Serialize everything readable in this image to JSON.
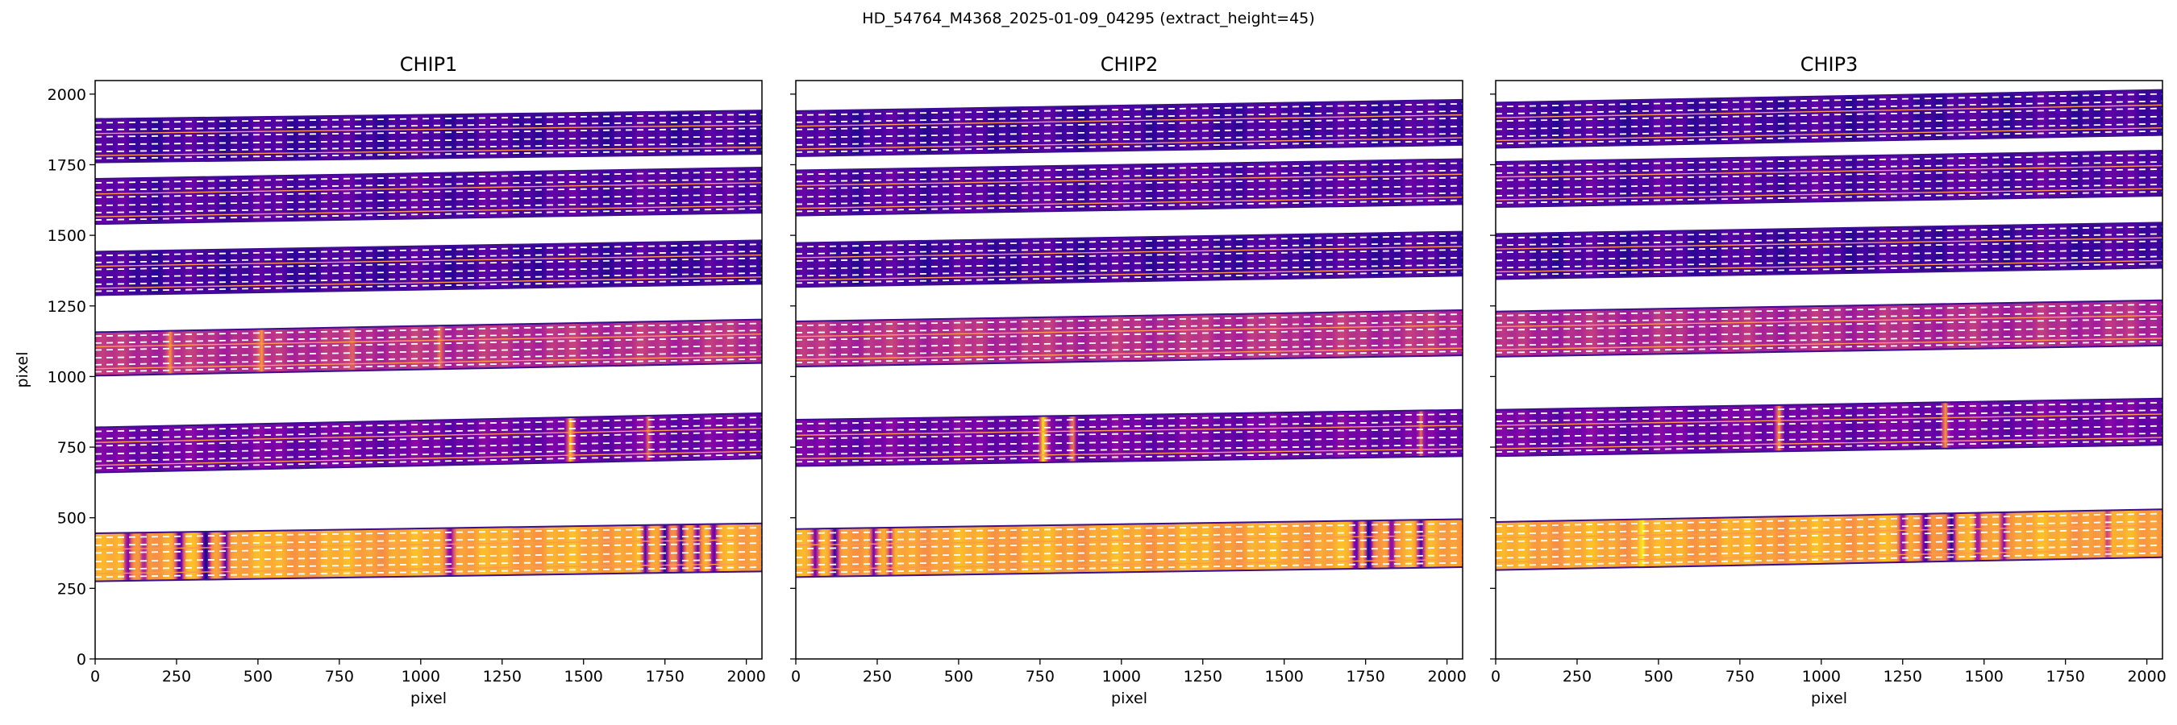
{
  "figure": {
    "suptitle": "HD_54764_M4368_2025-01-09_04295  (extract_height=45)"
  },
  "colors": {
    "order_edge": "#3b0f8c",
    "trace_center": "#ff9a50",
    "extraction_window": "#ffffff",
    "colormap": "plasma"
  },
  "chart_data": [
    {
      "type": "heatmap",
      "title": "CHIP1",
      "xlabel": "pixel",
      "ylabel": "pixel",
      "xlim": [
        0,
        2048
      ],
      "ylim": [
        0,
        2048
      ],
      "xticks": [
        0,
        250,
        500,
        750,
        1000,
        1250,
        1500,
        1750,
        2000
      ],
      "yticks": [
        0,
        250,
        500,
        750,
        1000,
        1250,
        1500,
        1750,
        2000
      ],
      "orders": [
        {
          "y_left": 360,
          "y_right": 395,
          "half_width": 85,
          "base_intensity": 0.8,
          "absorption_lines": [
            {
              "x": 100,
              "depth": 0.6,
              "width": 18
            },
            {
              "x": 150,
              "depth": 0.5,
              "width": 14
            },
            {
              "x": 260,
              "depth": 0.7,
              "width": 20
            },
            {
              "x": 340,
              "depth": 0.8,
              "width": 22
            },
            {
              "x": 400,
              "depth": 0.6,
              "width": 16
            },
            {
              "x": 1090,
              "depth": 0.5,
              "width": 20
            },
            {
              "x": 1690,
              "depth": 0.7,
              "width": 16
            },
            {
              "x": 1750,
              "depth": 0.8,
              "width": 18
            },
            {
              "x": 1800,
              "depth": 0.7,
              "width": 16
            },
            {
              "x": 1850,
              "depth": 0.6,
              "width": 14
            },
            {
              "x": 1900,
              "depth": 0.7,
              "width": 18
            }
          ]
        },
        {
          "y_left": 740,
          "y_right": 790,
          "half_width": 80,
          "base_intensity": 0.22,
          "absorption_lines": [
            {
              "x": 1460,
              "depth": -0.6,
              "width": 16
            },
            {
              "x": 1700,
              "depth": -0.4,
              "width": 12
            }
          ]
        },
        {
          "y_left": 1080,
          "y_right": 1125,
          "half_width": 77,
          "base_intensity": 0.42,
          "absorption_lines": [
            {
              "x": 230,
              "depth": -0.3,
              "width": 12
            },
            {
              "x": 510,
              "depth": -0.3,
              "width": 12
            },
            {
              "x": 790,
              "depth": -0.2,
              "width": 10
            },
            {
              "x": 1060,
              "depth": -0.25,
              "width": 12
            }
          ]
        },
        {
          "y_left": 1365,
          "y_right": 1405,
          "half_width": 77,
          "base_intensity": 0.12,
          "absorption_lines": []
        },
        {
          "y_left": 1620,
          "y_right": 1660,
          "half_width": 80,
          "base_intensity": 0.15,
          "absorption_lines": []
        },
        {
          "y_left": 1835,
          "y_right": 1865,
          "half_width": 77,
          "base_intensity": 0.12,
          "absorption_lines": []
        }
      ]
    },
    {
      "type": "heatmap",
      "title": "CHIP2",
      "xlabel": "pixel",
      "ylabel": "",
      "xlim": [
        0,
        2048
      ],
      "ylim": [
        0,
        2048
      ],
      "xticks": [
        0,
        250,
        500,
        750,
        1000,
        1250,
        1500,
        1750,
        2000
      ],
      "yticks": [
        0,
        250,
        500,
        750,
        1000,
        1250,
        1500,
        1750,
        2000
      ],
      "orders": [
        {
          "y_left": 375,
          "y_right": 410,
          "half_width": 85,
          "base_intensity": 0.8,
          "absorption_lines": [
            {
              "x": 60,
              "depth": 0.6,
              "width": 18
            },
            {
              "x": 120,
              "depth": 0.7,
              "width": 18
            },
            {
              "x": 240,
              "depth": 0.6,
              "width": 16
            },
            {
              "x": 290,
              "depth": 0.5,
              "width": 14
            },
            {
              "x": 1720,
              "depth": 0.7,
              "width": 16
            },
            {
              "x": 1760,
              "depth": 0.8,
              "width": 18
            },
            {
              "x": 1830,
              "depth": 0.6,
              "width": 14
            },
            {
              "x": 1920,
              "depth": 0.7,
              "width": 18
            }
          ]
        },
        {
          "y_left": 765,
          "y_right": 800,
          "half_width": 82,
          "base_intensity": 0.22,
          "absorption_lines": [
            {
              "x": 760,
              "depth": -0.7,
              "width": 18
            },
            {
              "x": 850,
              "depth": -0.5,
              "width": 14
            },
            {
              "x": 1920,
              "depth": -0.4,
              "width": 12
            }
          ]
        },
        {
          "y_left": 1115,
          "y_right": 1155,
          "half_width": 80,
          "base_intensity": 0.42,
          "absorption_lines": []
        },
        {
          "y_left": 1395,
          "y_right": 1435,
          "half_width": 78,
          "base_intensity": 0.12,
          "absorption_lines": []
        },
        {
          "y_left": 1650,
          "y_right": 1690,
          "half_width": 80,
          "base_intensity": 0.15,
          "absorption_lines": []
        },
        {
          "y_left": 1860,
          "y_right": 1900,
          "half_width": 80,
          "base_intensity": 0.12,
          "absorption_lines": []
        }
      ]
    },
    {
      "type": "heatmap",
      "title": "CHIP3",
      "xlabel": "pixel",
      "ylabel": "",
      "xlim": [
        0,
        2048
      ],
      "ylim": [
        0,
        2048
      ],
      "xticks": [
        0,
        250,
        500,
        750,
        1000,
        1250,
        1500,
        1750,
        2000
      ],
      "yticks": [
        0,
        250,
        500,
        750,
        1000,
        1250,
        1500,
        1750,
        2000
      ],
      "orders": [
        {
          "y_left": 400,
          "y_right": 445,
          "half_width": 85,
          "base_intensity": 0.8,
          "absorption_lines": [
            {
              "x": 450,
              "depth": -0.2,
              "width": 14
            },
            {
              "x": 1250,
              "depth": 0.6,
              "width": 18
            },
            {
              "x": 1320,
              "depth": 0.7,
              "width": 18
            },
            {
              "x": 1400,
              "depth": 0.8,
              "width": 20
            },
            {
              "x": 1480,
              "depth": 0.6,
              "width": 16
            },
            {
              "x": 1560,
              "depth": 0.5,
              "width": 14
            },
            {
              "x": 1880,
              "depth": 0.4,
              "width": 14
            }
          ]
        },
        {
          "y_left": 800,
          "y_right": 840,
          "half_width": 82,
          "base_intensity": 0.22,
          "absorption_lines": [
            {
              "x": 870,
              "depth": -0.6,
              "width": 16
            },
            {
              "x": 1380,
              "depth": -0.6,
              "width": 14
            }
          ]
        },
        {
          "y_left": 1150,
          "y_right": 1190,
          "half_width": 80,
          "base_intensity": 0.4,
          "absorption_lines": []
        },
        {
          "y_left": 1425,
          "y_right": 1465,
          "half_width": 80,
          "base_intensity": 0.12,
          "absorption_lines": []
        },
        {
          "y_left": 1680,
          "y_right": 1720,
          "half_width": 80,
          "base_intensity": 0.15,
          "absorption_lines": []
        },
        {
          "y_left": 1890,
          "y_right": 1935,
          "half_width": 80,
          "base_intensity": 0.12,
          "absorption_lines": []
        }
      ]
    }
  ]
}
